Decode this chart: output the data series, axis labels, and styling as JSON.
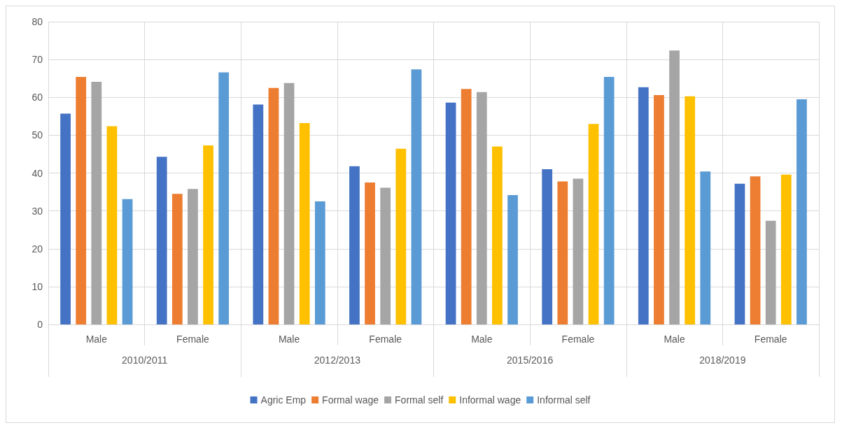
{
  "chart_data": {
    "type": "bar",
    "categories": [
      "Male",
      "Female",
      "Male",
      "Female",
      "Male",
      "Female",
      "Male",
      "Female"
    ],
    "annotations": [
      "2010/2011",
      "2012/2013",
      "2015/2016",
      "2018/2019"
    ],
    "series": [
      {
        "name": "Agric Emp",
        "color": "#4472c4",
        "values": [
          55.7,
          44.3,
          58.1,
          41.8,
          58.6,
          41.0,
          62.7,
          37.2
        ]
      },
      {
        "name": "Formal wage",
        "color": "#ed7d31",
        "values": [
          65.4,
          34.5,
          62.5,
          37.5,
          62.2,
          37.8,
          60.6,
          39.1
        ]
      },
      {
        "name": "Formal self",
        "color": "#a5a5a5",
        "values": [
          64.1,
          35.8,
          63.8,
          36.1,
          61.4,
          38.5,
          72.4,
          27.4
        ]
      },
      {
        "name": "Informal wage",
        "color": "#ffc000",
        "values": [
          52.4,
          47.3,
          53.2,
          46.4,
          47.0,
          53.0,
          60.3,
          39.6
        ]
      },
      {
        "name": "Informal self",
        "color": "#5b9bd5",
        "values": [
          33.1,
          66.6,
          32.5,
          67.4,
          34.2,
          65.4,
          40.4,
          59.5
        ]
      }
    ],
    "ylim": [
      0,
      80
    ],
    "yticks": [
      0,
      10,
      20,
      30,
      40,
      50,
      60,
      70,
      80
    ],
    "grid": true,
    "legend": "bottom"
  }
}
